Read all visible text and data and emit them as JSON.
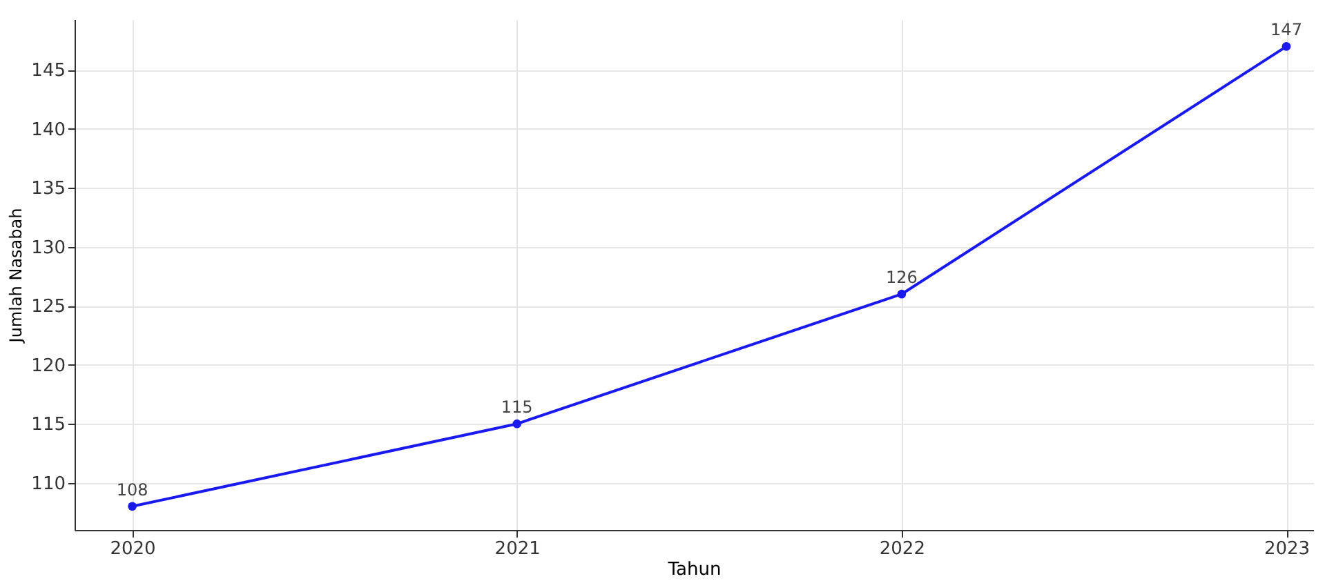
{
  "chart_data": {
    "type": "line",
    "xlabel": "Tahun",
    "ylabel": "Jumlah Nasabah",
    "x": [
      2020,
      2021,
      2022,
      2023
    ],
    "series": [
      {
        "color": "#1a1aee",
        "values": [
          108,
          115,
          126,
          147
        ]
      }
    ],
    "xlim": [
      2019.85,
      2023.07
    ],
    "xticks": [
      2020,
      2021,
      2022,
      2023
    ],
    "ylim": [
      106,
      149.3
    ],
    "yticks": [
      110,
      115,
      120,
      125,
      130,
      135,
      140,
      145
    ],
    "grid": true,
    "marker": "circle",
    "line_style": "solid",
    "data_labels": true
  }
}
